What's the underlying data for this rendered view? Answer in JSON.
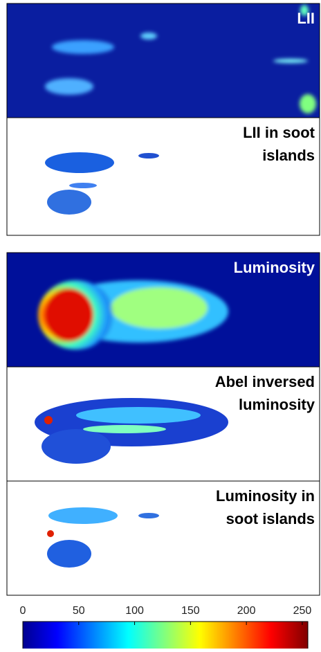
{
  "panels": [
    {
      "label": [
        "LII"
      ]
    },
    {
      "label": [
        "LII in soot",
        "islands"
      ]
    },
    {
      "label": [
        "Luminosity"
      ]
    },
    {
      "label": [
        "Abel inversed",
        "luminosity"
      ]
    },
    {
      "label": [
        "Luminosity in",
        "soot islands"
      ]
    }
  ],
  "colorbar": {
    "lim": [
      0,
      255
    ],
    "ticks": [
      0,
      50,
      100,
      150,
      200,
      250
    ]
  }
}
